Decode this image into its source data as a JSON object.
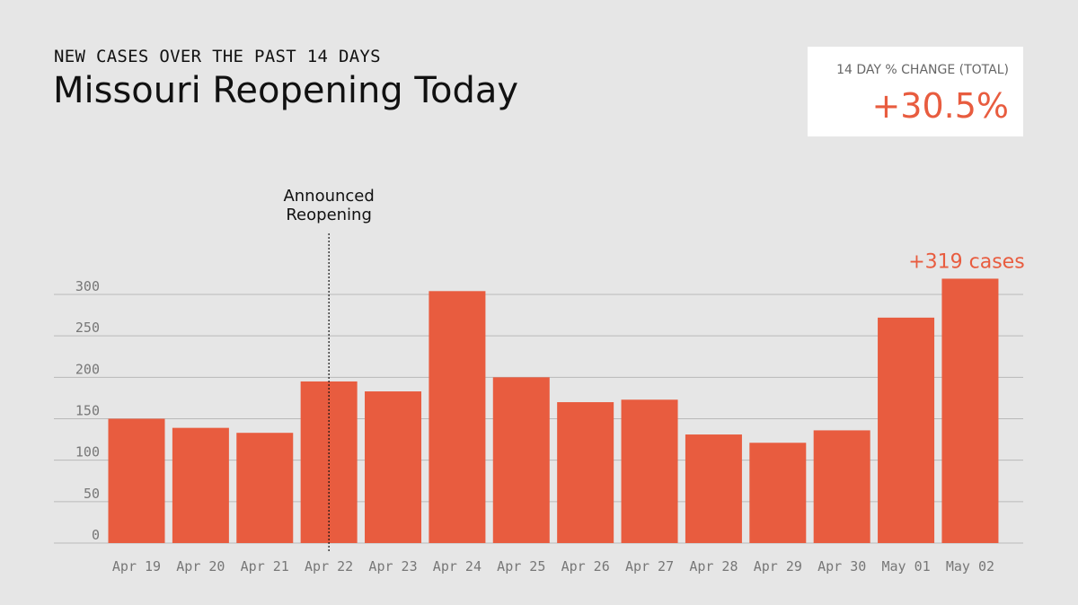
{
  "header": {
    "kicker": "NEW CASES OVER THE PAST 14 DAYS",
    "title": "Missouri Reopening Today"
  },
  "stat": {
    "label": "14 DAY % CHANGE (TOTAL)",
    "value": "+30.5%"
  },
  "colors": {
    "bar": "#e85c3f",
    "grid": "#b9b9b9",
    "background": "#e6e6e6"
  },
  "chart_data": {
    "type": "bar",
    "categories": [
      "Apr 19",
      "Apr 20",
      "Apr 21",
      "Apr 22",
      "Apr 23",
      "Apr 24",
      "Apr 25",
      "Apr 26",
      "Apr 27",
      "Apr 28",
      "Apr 29",
      "Apr 30",
      "May 01",
      "May 02"
    ],
    "values": [
      150,
      139,
      133,
      195,
      183,
      304,
      200,
      170,
      173,
      131,
      121,
      136,
      272,
      319
    ],
    "ylim": [
      0,
      300
    ],
    "yticks": [
      0,
      50,
      100,
      150,
      200,
      250,
      300
    ],
    "grid": true,
    "annotation": {
      "category": "Apr 22",
      "lines": [
        "Announced",
        "Reopening"
      ],
      "style": "dotted-vertical-line"
    },
    "last_bar_label": "+319 cases"
  }
}
